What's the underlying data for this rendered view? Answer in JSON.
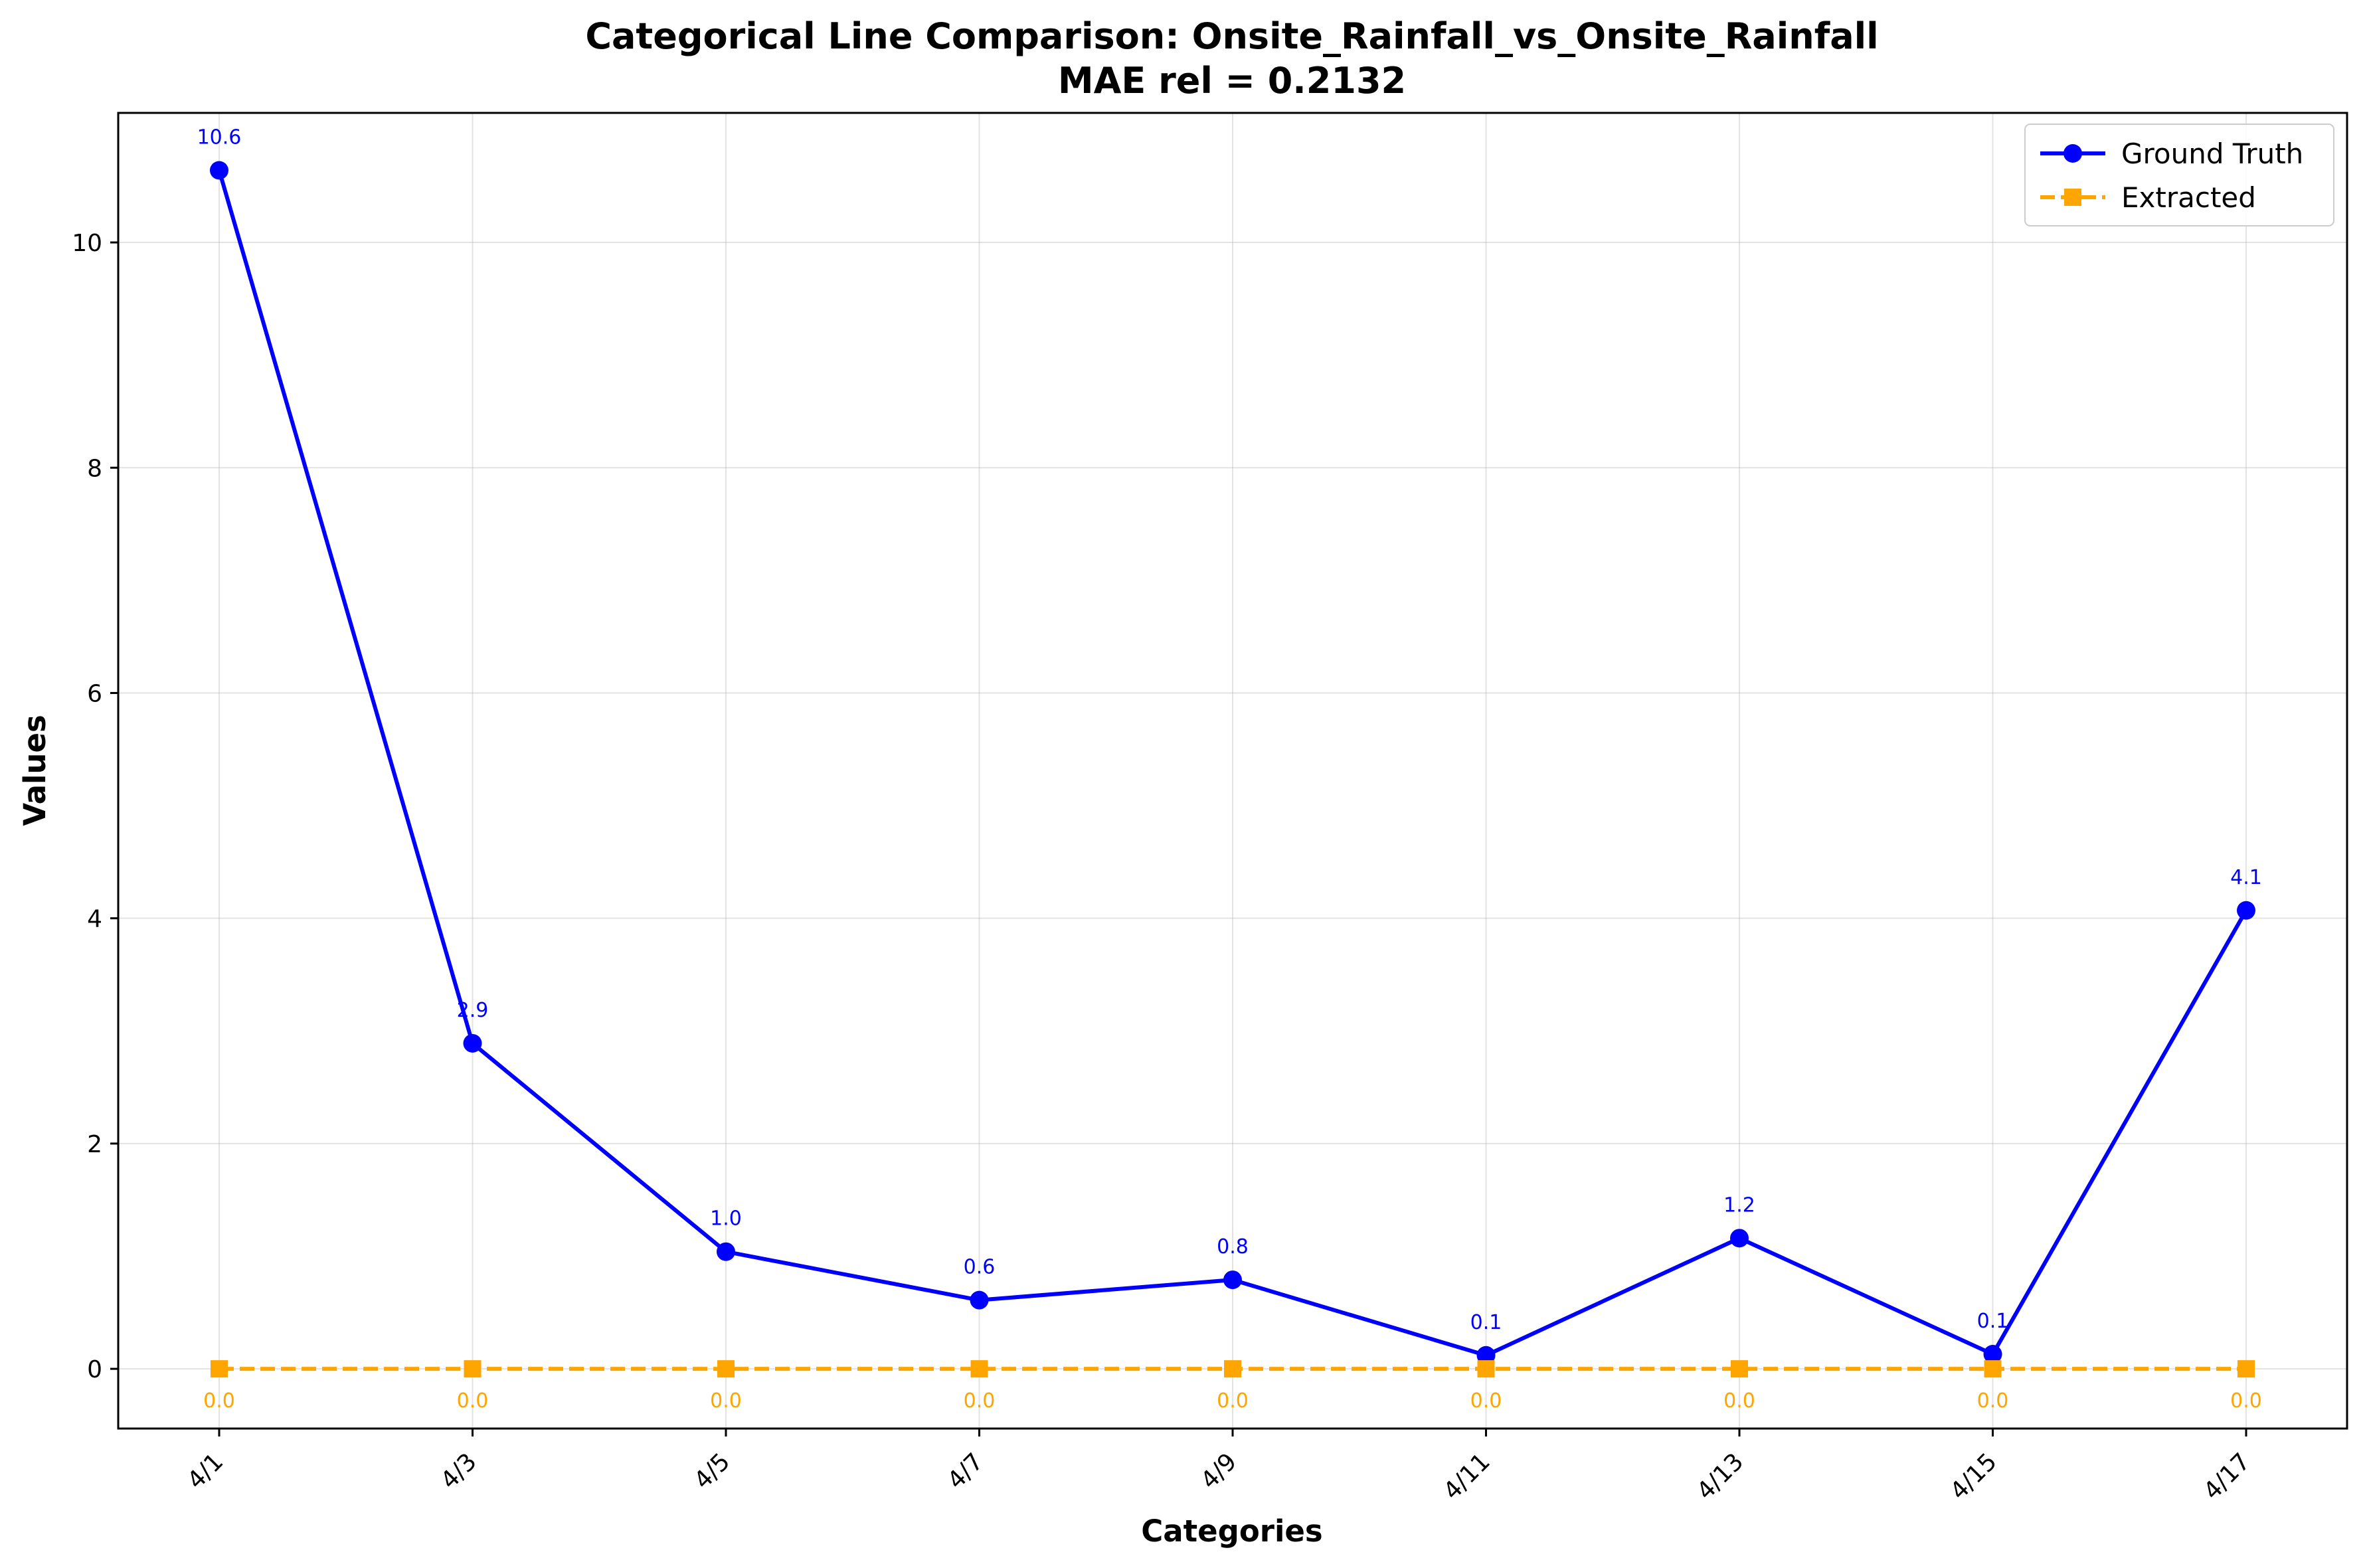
{
  "chart_data": {
    "type": "line",
    "title": "Categorical Line Comparison: Onsite_Rainfall_vs_Onsite_Rainfall",
    "subtitle": "MAE rel = 0.2132",
    "xlabel": "Categories",
    "ylabel": "Values",
    "categories": [
      "4/1",
      "4/3",
      "4/5",
      "4/7",
      "4/9",
      "4/11",
      "4/13",
      "4/15",
      "4/17"
    ],
    "ylim": [
      -0.53,
      11.15
    ],
    "yticks": [
      0,
      2,
      4,
      6,
      8,
      10
    ],
    "grid": true,
    "legend_position": "top-right",
    "series": [
      {
        "name": "Ground Truth",
        "color": "#0000ff",
        "marker": "circle",
        "line_style": "solid",
        "values": [
          10.64,
          2.89,
          1.04,
          0.61,
          0.79,
          0.12,
          1.16,
          0.13,
          4.07
        ],
        "labels": [
          "10.6",
          "2.9",
          "1.0",
          "0.6",
          "0.8",
          "0.1",
          "1.2",
          "0.1",
          "4.1"
        ]
      },
      {
        "name": "Extracted",
        "color": "#ffa500",
        "marker": "square",
        "line_style": "dashed",
        "values": [
          0,
          0,
          0,
          0,
          0,
          0,
          0,
          0,
          0
        ],
        "labels": [
          "0.0",
          "0.0",
          "0.0",
          "0.0",
          "0.0",
          "0.0",
          "0.0",
          "0.0",
          "0.0"
        ]
      }
    ]
  }
}
